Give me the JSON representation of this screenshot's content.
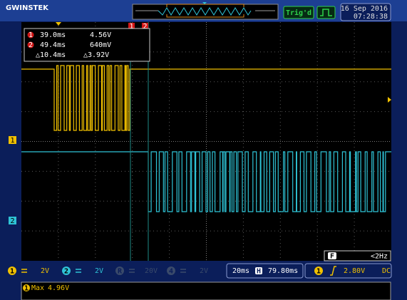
{
  "header": {
    "brand": "GWINSTEK",
    "trigger_status": "Trig'd",
    "date": "16 Sep 2016",
    "time": "07:28:38"
  },
  "cursors": {
    "markers": [
      "1",
      "2"
    ],
    "rows": [
      {
        "id": "1",
        "time": "39.0ms",
        "value": "4.56V"
      },
      {
        "id": "2",
        "time": "49.4ms",
        "value": "640mV"
      },
      {
        "time": "△10.4ms",
        "value": "△3.92V"
      }
    ]
  },
  "channels": [
    {
      "id": "1",
      "scale": "2V"
    },
    {
      "id": "2",
      "scale": "2V"
    },
    {
      "id": "R",
      "scale": "20V"
    },
    {
      "id": "4",
      "scale": "2V"
    }
  ],
  "timebase": {
    "scale": "20ms",
    "icon": "H",
    "position": "79.80ms"
  },
  "trigger": {
    "source": "1",
    "level": "2.80V",
    "coupling": "DC"
  },
  "frequency": {
    "icon": "F",
    "value": "<2Hz"
  },
  "measurement": {
    "source": "1",
    "label": "Max",
    "value": "4.96V"
  }
}
